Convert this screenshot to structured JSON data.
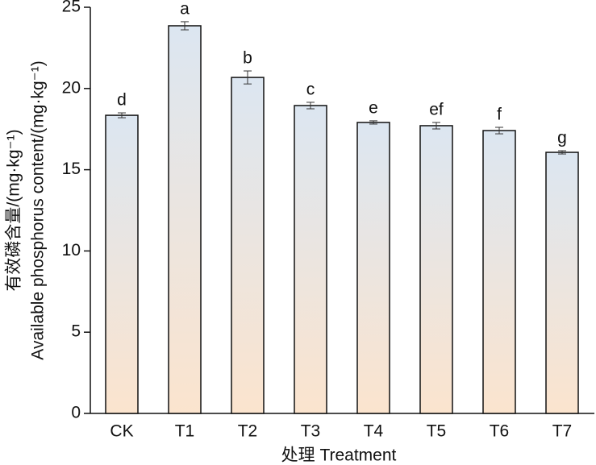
{
  "chart_data": {
    "type": "bar",
    "categories": [
      "CK",
      "T1",
      "T2",
      "T3",
      "T4",
      "T5",
      "T6",
      "T7"
    ],
    "values": [
      18.35,
      23.86,
      20.68,
      18.95,
      17.91,
      17.71,
      17.41,
      16.07
    ],
    "errors": [
      0.15,
      0.25,
      0.4,
      0.2,
      0.1,
      0.2,
      0.2,
      0.1
    ],
    "annotations": [
      "d",
      "a",
      "b",
      "c",
      "e",
      "ef",
      "f",
      "g"
    ],
    "ylim": [
      0,
      25
    ],
    "yticks": [
      0,
      5,
      10,
      15,
      20,
      25
    ],
    "xlabel": "处理 Treatment",
    "ylabel": [
      "有效磷含量/(mg·kg⁻¹)",
      "Available phosphorus content/(mg·kg⁻¹)"
    ],
    "color": [
      "#dce6f1",
      "#fbe4ce"
    ],
    "grid": false
  }
}
